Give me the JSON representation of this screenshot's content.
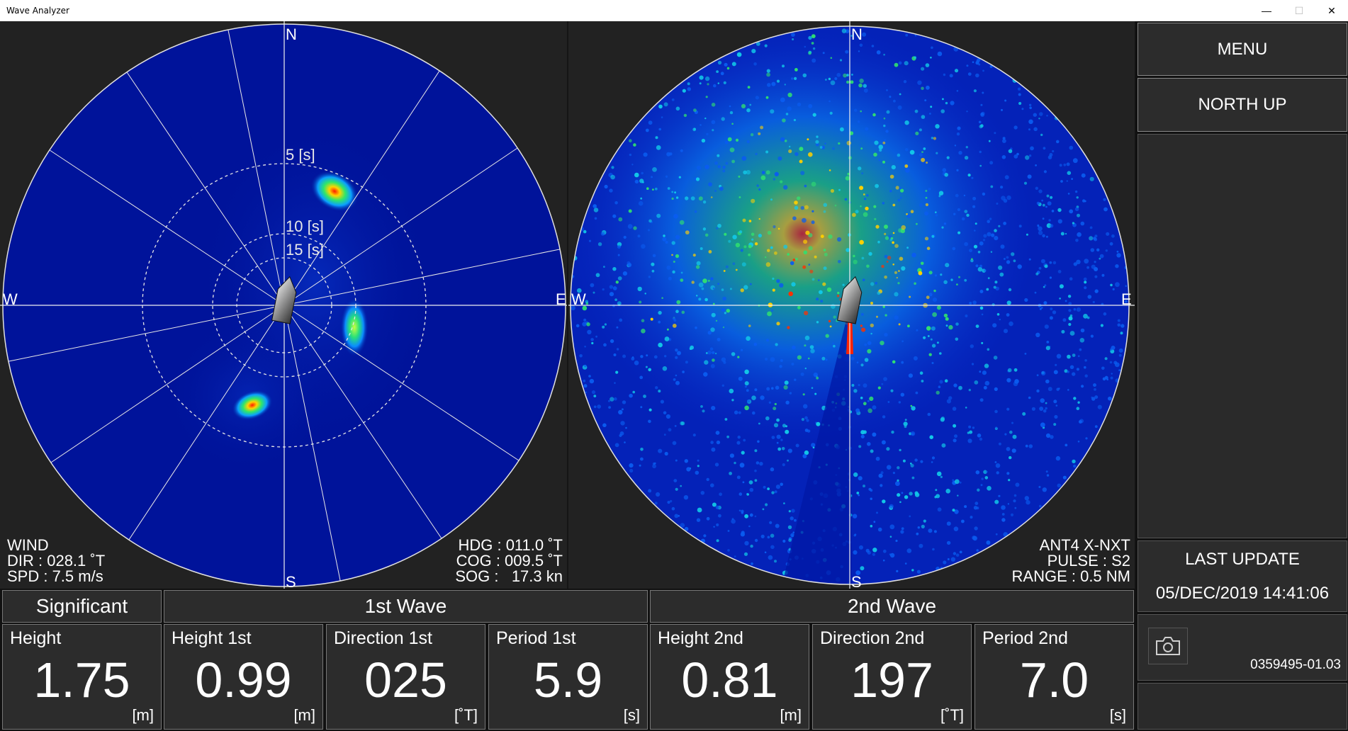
{
  "window": {
    "title": "Wave Analyzer",
    "minimize": "—",
    "maximize": "☐",
    "close": "✕"
  },
  "left_plot": {
    "compass": {
      "n": "N",
      "e": "E",
      "s": "S",
      "w": "W"
    },
    "rings": [
      "5 [s]",
      "10 [s]",
      "15 [s]"
    ],
    "wind": {
      "label": "WIND",
      "dir": "DIR : 028.1 ˚T",
      "spd": "SPD : 7.5 m/s"
    },
    "nav": {
      "hdg": "HDG : 011.0 ˚T",
      "cog": "COG : 009.5 ˚T",
      "sog": "SOG :   17.3 kn"
    }
  },
  "right_plot": {
    "compass": {
      "n": "N",
      "e": "E",
      "s": "S",
      "w": "W"
    },
    "antenna": "ANT4 X-NXT",
    "pulse": "PULSE : S2",
    "range": "RANGE : 0.5 NM"
  },
  "side": {
    "menu": "MENU",
    "north_up": "NORTH UP",
    "last_update_label": "LAST UPDATE",
    "last_update_value": "05/DEC/2019 14:41:06",
    "version": "0359495-01.03"
  },
  "table": {
    "headers": {
      "significant": "Significant",
      "first": "1st Wave",
      "second": "2nd Wave"
    },
    "cells": [
      {
        "title": "Height",
        "value": "1.75",
        "unit": "[m]"
      },
      {
        "title": "Height 1st",
        "value": "0.99",
        "unit": "[m]"
      },
      {
        "title": "Direction 1st",
        "value": "025",
        "unit": "[˚T]"
      },
      {
        "title": "Period 1st",
        "value": "5.9",
        "unit": "[s]"
      },
      {
        "title": "Height 2nd",
        "value": "0.81",
        "unit": "[m]"
      },
      {
        "title": "Direction 2nd",
        "value": "197",
        "unit": "[˚T]"
      },
      {
        "title": "Period 2nd",
        "value": "7.0",
        "unit": "[s]"
      }
    ]
  },
  "colors": {
    "plot_blue": "#00139a",
    "panel": "#2c2c2c"
  }
}
